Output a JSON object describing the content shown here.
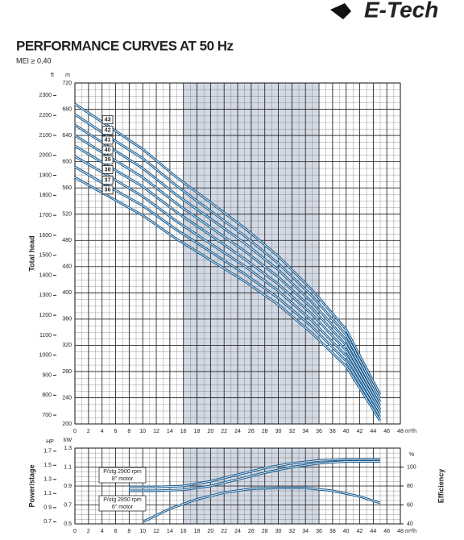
{
  "brand": "E-Tech",
  "chart_data": [
    {
      "type": "line",
      "title": "PERFORMANCE CURVES AT 50 Hz",
      "subtitle": "MEI ≥ 0,40",
      "x": [
        0,
        5,
        10,
        15,
        20,
        25,
        30,
        35,
        40,
        45
      ],
      "xlim": [
        0,
        48
      ],
      "xticks": [
        0,
        2,
        4,
        6,
        8,
        10,
        12,
        14,
        16,
        18,
        20,
        22,
        24,
        26,
        28,
        30,
        32,
        34,
        36,
        38,
        40,
        42,
        44,
        46,
        48
      ],
      "xlabel": "m³/h",
      "ylabel": "Total head",
      "y_unit": "m",
      "ylim": [
        200,
        720
      ],
      "yticks": [
        200,
        240,
        280,
        320,
        360,
        400,
        440,
        480,
        520,
        560,
        600,
        640,
        680,
        720
      ],
      "y2_unit": "ft",
      "y2lim": [
        656,
        2362
      ],
      "y2ticks": [
        700,
        800,
        900,
        1000,
        1100,
        1200,
        1300,
        1400,
        1500,
        1600,
        1700,
        1800,
        1900,
        2000,
        2100,
        2200,
        2300
      ],
      "highlight_range": [
        16,
        36
      ],
      "grid": true,
      "series": [
        {
          "name": "43",
          "color": "#1d5f93",
          "values": [
            688,
            654,
            619,
            576,
            538,
            499,
            456,
            404,
            344,
            245
          ]
        },
        {
          "name": "42",
          "color": "#1d5f93",
          "values": [
            672,
            638,
            605,
            563,
            525,
            487,
            445,
            395,
            336,
            239
          ]
        },
        {
          "name": "41",
          "color": "#1d5f93",
          "values": [
            656,
            623,
            590,
            549,
            513,
            476,
            435,
            385,
            328,
            234
          ]
        },
        {
          "name": "40",
          "color": "#1d5f93",
          "values": [
            640,
            608,
            576,
            536,
            500,
            464,
            424,
            376,
            320,
            228
          ]
        },
        {
          "name": "39",
          "color": "#1d5f93",
          "values": [
            624,
            593,
            562,
            523,
            488,
            452,
            413,
            367,
            312,
            222
          ]
        },
        {
          "name": "38",
          "color": "#1d5f93",
          "values": [
            608,
            578,
            547,
            509,
            475,
            441,
            403,
            357,
            304,
            217
          ]
        },
        {
          "name": "37",
          "color": "#1d5f93",
          "values": [
            592,
            562,
            533,
            496,
            463,
            429,
            392,
            348,
            296,
            211
          ]
        },
        {
          "name": "36",
          "color": "#1d5f93",
          "values": [
            576,
            547,
            518,
            482,
            450,
            418,
            382,
            338,
            288,
            205
          ]
        }
      ]
    },
    {
      "type": "line",
      "xlim": [
        0,
        48
      ],
      "xticks": [
        0,
        2,
        4,
        6,
        8,
        10,
        12,
        14,
        16,
        18,
        20,
        22,
        24,
        26,
        28,
        30,
        32,
        34,
        36,
        38,
        40,
        42,
        44,
        46,
        48
      ],
      "xlabel": "m³/h",
      "ylabel": "Power/stage",
      "y_unit": "kW",
      "ylim": [
        0.5,
        1.3
      ],
      "yticks": [
        0.5,
        0.7,
        0.9,
        1.1,
        1.3
      ],
      "hp_unit": "HP",
      "hplim": [
        0.67,
        1.743
      ],
      "hpticks": [
        0.7,
        0.9,
        1.1,
        1.3,
        1.5,
        1.7
      ],
      "y2label": "Efficiency",
      "y2_unit": "%",
      "y2lim": [
        40,
        120
      ],
      "y2ticks": [
        40,
        60,
        80,
        100
      ],
      "highlight_range": [
        16,
        36
      ],
      "grid": true,
      "annotations": [
        [
          "P/stg 2900 rpm",
          "8\" motor"
        ],
        [
          "P/stg 2850 rpm",
          "6\" motor"
        ]
      ],
      "series": [
        {
          "color": "#1d5f93",
          "x": [
            8,
            12,
            16,
            20,
            24,
            28,
            32,
            36,
            40,
            45
          ],
          "values": [
            0.89,
            0.89,
            0.9,
            0.95,
            1.02,
            1.09,
            1.14,
            1.17,
            1.18,
            1.18
          ]
        },
        {
          "color": "#1d5f93",
          "x": [
            8,
            12,
            16,
            20,
            24,
            28,
            32,
            36,
            40,
            45
          ],
          "values": [
            0.85,
            0.85,
            0.86,
            0.9,
            0.97,
            1.04,
            1.1,
            1.14,
            1.16,
            1.16
          ]
        },
        {
          "color": "#1d5f93",
          "axis": "y2",
          "x": [
            10,
            14,
            18,
            22,
            26,
            30,
            34,
            38,
            42,
            45
          ],
          "values": [
            42,
            56,
            66,
            73,
            77,
            78,
            78,
            75,
            69,
            62
          ]
        }
      ]
    }
  ]
}
